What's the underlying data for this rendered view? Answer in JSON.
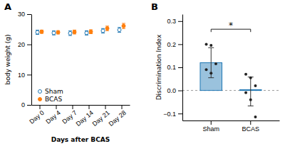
{
  "chart_data": [
    {
      "type": "scatter",
      "title": "A",
      "xlabel": "Days after BCAS",
      "ylabel": "body weight (g)",
      "categories": [
        "Day 0",
        "Day 4",
        "Day 7",
        "Day 14",
        "Day 21",
        "Day 28"
      ],
      "series": [
        {
          "name": "Sham",
          "marker": "open-circle",
          "values": [
            24.0,
            23.8,
            23.7,
            23.8,
            24.5,
            24.8
          ],
          "errors": [
            0.7,
            0.65,
            0.75,
            0.7,
            0.75,
            0.8
          ]
        },
        {
          "name": "BCAS",
          "marker": "circle",
          "values": [
            24.2,
            24.0,
            24.1,
            24.2,
            25.3,
            26.1
          ],
          "errors": [
            0.55,
            0.55,
            0.65,
            0.65,
            0.75,
            0.85
          ]
        }
      ],
      "ylim": [
        0,
        30
      ],
      "yticks": [
        0,
        10,
        20,
        30
      ],
      "legend": "lower left"
    },
    {
      "type": "bar",
      "title": "B",
      "ylabel": "Discrimination Index",
      "categories": [
        "Sham",
        "BCAS"
      ],
      "values": [
        0.12,
        0.003
      ],
      "errors_lower": [
        0.065,
        0.07
      ],
      "errors_upper": [
        0.065,
        0.055
      ],
      "points": [
        [
          0.2,
          0.195,
          0.115,
          0.09,
          0.075
        ],
        [
          0.07,
          0.055,
          0.02,
          -0.01,
          -0.04,
          -0.115
        ]
      ],
      "reference_line": 0.0,
      "annotations": [
        {
          "text": "*",
          "y": 0.265
        }
      ],
      "ylim": [
        -0.13,
        0.33
      ],
      "yticks": [
        {
          "value": -0.1,
          "label": "−0.1"
        },
        {
          "value": 0.0,
          "label": "0.0"
        },
        0.1,
        0.2,
        0.3
      ]
    }
  ]
}
